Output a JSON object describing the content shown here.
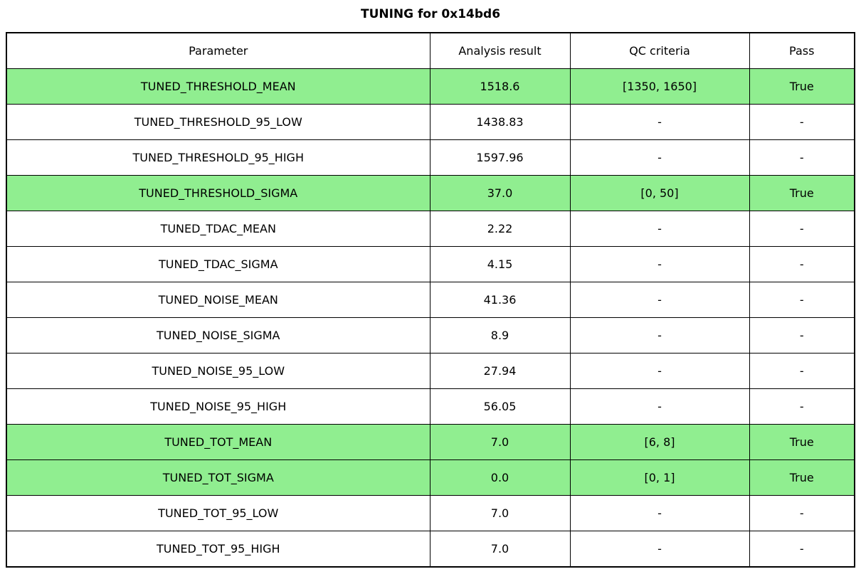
{
  "colors": {
    "pass_row_bg": "#90EE90",
    "row_bg": "#FFFFFF",
    "border": "#000000",
    "text": "#000000"
  },
  "chart_data": {
    "type": "table",
    "title": "TUNING for 0x14bd6",
    "columns": [
      "Parameter",
      "Analysis result",
      "QC criteria",
      "Pass"
    ],
    "rows": [
      {
        "parameter": "TUNED_THRESHOLD_MEAN",
        "analysis_result": "1518.6",
        "qc_criteria": "[1350, 1650]",
        "pass": "True",
        "highlighted": true
      },
      {
        "parameter": "TUNED_THRESHOLD_95_LOW",
        "analysis_result": "1438.83",
        "qc_criteria": "-",
        "pass": "-",
        "highlighted": false
      },
      {
        "parameter": "TUNED_THRESHOLD_95_HIGH",
        "analysis_result": "1597.96",
        "qc_criteria": "-",
        "pass": "-",
        "highlighted": false
      },
      {
        "parameter": "TUNED_THRESHOLD_SIGMA",
        "analysis_result": "37.0",
        "qc_criteria": "[0, 50]",
        "pass": "True",
        "highlighted": true
      },
      {
        "parameter": "TUNED_TDAC_MEAN",
        "analysis_result": "2.22",
        "qc_criteria": "-",
        "pass": "-",
        "highlighted": false
      },
      {
        "parameter": "TUNED_TDAC_SIGMA",
        "analysis_result": "4.15",
        "qc_criteria": "-",
        "pass": "-",
        "highlighted": false
      },
      {
        "parameter": "TUNED_NOISE_MEAN",
        "analysis_result": "41.36",
        "qc_criteria": "-",
        "pass": "-",
        "highlighted": false
      },
      {
        "parameter": "TUNED_NOISE_SIGMA",
        "analysis_result": "8.9",
        "qc_criteria": "-",
        "pass": "-",
        "highlighted": false
      },
      {
        "parameter": "TUNED_NOISE_95_LOW",
        "analysis_result": "27.94",
        "qc_criteria": "-",
        "pass": "-",
        "highlighted": false
      },
      {
        "parameter": "TUNED_NOISE_95_HIGH",
        "analysis_result": "56.05",
        "qc_criteria": "-",
        "pass": "-",
        "highlighted": false
      },
      {
        "parameter": "TUNED_TOT_MEAN",
        "analysis_result": "7.0",
        "qc_criteria": "[6, 8]",
        "pass": "True",
        "highlighted": true
      },
      {
        "parameter": "TUNED_TOT_SIGMA",
        "analysis_result": "0.0",
        "qc_criteria": "[0, 1]",
        "pass": "True",
        "highlighted": true
      },
      {
        "parameter": "TUNED_TOT_95_LOW",
        "analysis_result": "7.0",
        "qc_criteria": "-",
        "pass": "-",
        "highlighted": false
      },
      {
        "parameter": "TUNED_TOT_95_HIGH",
        "analysis_result": "7.0",
        "qc_criteria": "-",
        "pass": "-",
        "highlighted": false
      }
    ]
  }
}
